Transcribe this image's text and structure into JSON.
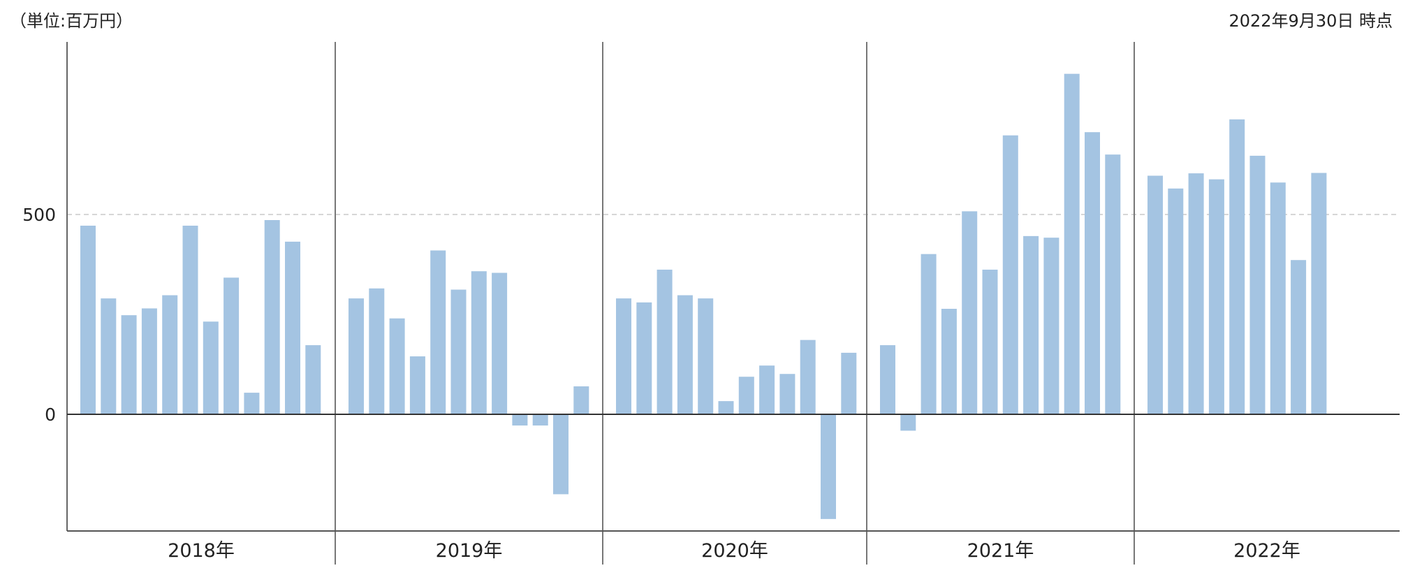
{
  "unit_label": "（単位:百万円）",
  "as_of_label": "2022年9月30日 時点",
  "chart_data": {
    "type": "bar",
    "title": "",
    "xlabel": "",
    "ylabel": "",
    "ylim": [
      -290,
      850
    ],
    "yticks": [
      0,
      500
    ],
    "ytick_labels": [
      "0",
      "500"
    ],
    "reference_line": 500,
    "bar_color": "#a4c4e2",
    "years": [
      {
        "label": "2018年",
        "values": [
          472,
          290,
          248,
          265,
          298,
          472,
          232,
          342,
          54,
          486,
          432,
          173
        ]
      },
      {
        "label": "2019年",
        "values": [
          290,
          315,
          240,
          145,
          410,
          312,
          358,
          354,
          -28,
          -28,
          -200,
          70
        ]
      },
      {
        "label": "2020年",
        "values": [
          290,
          280,
          362,
          298,
          290,
          33,
          94,
          122,
          101,
          186,
          -262,
          154
        ]
      },
      {
        "label": "2021年",
        "values": [
          173,
          -41,
          401,
          264,
          508,
          362,
          698,
          446,
          442,
          852,
          706,
          650
        ]
      },
      {
        "label": "2022年",
        "values": [
          597,
          565,
          603,
          588,
          738,
          647,
          580,
          386,
          604
        ]
      }
    ]
  }
}
